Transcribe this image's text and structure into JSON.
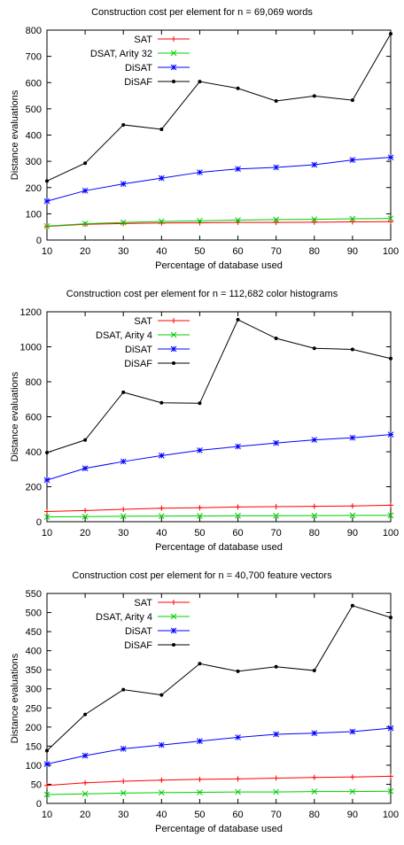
{
  "chart_data": [
    {
      "type": "line",
      "title": "Construction cost per element for n = 69,069 words",
      "xlabel": "Percentage of database used",
      "ylabel": "Distance evaluations",
      "x": [
        10,
        20,
        30,
        40,
        50,
        60,
        70,
        80,
        90,
        100
      ],
      "xlim": [
        10,
        100
      ],
      "ylim": [
        0,
        800
      ],
      "xticks": [
        10,
        20,
        30,
        40,
        50,
        60,
        70,
        80,
        90,
        100
      ],
      "yticks": [
        0,
        100,
        200,
        300,
        400,
        500,
        600,
        700,
        800
      ],
      "legend_position": "top-left",
      "series": [
        {
          "name": "SAT",
          "color": "#ff0000",
          "marker": "plus",
          "values": [
            52,
            60,
            63,
            65,
            66,
            67,
            67,
            68,
            69,
            70
          ]
        },
        {
          "name": "DSAT, Arity 32",
          "color": "#00cc00",
          "marker": "cross",
          "values": [
            53,
            62,
            67,
            71,
            73,
            76,
            78,
            79,
            81,
            82
          ]
        },
        {
          "name": "DiSAT",
          "color": "#0000ff",
          "marker": "star",
          "values": [
            148,
            188,
            214,
            236,
            258,
            271,
            277,
            287,
            305,
            315
          ]
        },
        {
          "name": "DiSAF",
          "color": "#000000",
          "marker": "dot",
          "values": [
            225,
            293,
            439,
            422,
            604,
            578,
            530,
            549,
            533,
            786
          ]
        }
      ]
    },
    {
      "type": "line",
      "title": "Construction cost per element for n = 112,682 color histograms",
      "xlabel": "Percentage of database used",
      "ylabel": "Distance evaluations",
      "x": [
        10,
        20,
        30,
        40,
        50,
        60,
        70,
        80,
        90,
        100
      ],
      "xlim": [
        10,
        100
      ],
      "ylim": [
        0,
        1200
      ],
      "xticks": [
        10,
        20,
        30,
        40,
        50,
        60,
        70,
        80,
        90,
        100
      ],
      "yticks": [
        0,
        200,
        400,
        600,
        800,
        1000,
        1200
      ],
      "legend_position": "top-left",
      "series": [
        {
          "name": "SAT",
          "color": "#ff0000",
          "marker": "plus",
          "values": [
            58,
            64,
            71,
            77,
            80,
            84,
            86,
            88,
            90,
            94
          ]
        },
        {
          "name": "DSAT, Arity 4",
          "color": "#00cc00",
          "marker": "cross",
          "values": [
            27,
            29,
            31,
            32,
            33,
            34,
            34,
            35,
            36,
            36
          ]
        },
        {
          "name": "DiSAT",
          "color": "#0000ff",
          "marker": "star",
          "values": [
            238,
            305,
            344,
            378,
            408,
            430,
            450,
            468,
            480,
            498
          ]
        },
        {
          "name": "DiSAF",
          "color": "#000000",
          "marker": "dot",
          "values": [
            395,
            467,
            740,
            680,
            677,
            1155,
            1048,
            991,
            985,
            933
          ]
        }
      ]
    },
    {
      "type": "line",
      "title": "Construction cost per element for n = 40,700 feature vectors",
      "xlabel": "Percentage of database used",
      "ylabel": "Distance evaluations",
      "x": [
        10,
        20,
        30,
        40,
        50,
        60,
        70,
        80,
        90,
        100
      ],
      "xlim": [
        10,
        100
      ],
      "ylim": [
        0,
        550
      ],
      "xticks": [
        10,
        20,
        30,
        40,
        50,
        60,
        70,
        80,
        90,
        100
      ],
      "yticks": [
        0,
        50,
        100,
        150,
        200,
        250,
        300,
        350,
        400,
        450,
        500,
        550
      ],
      "legend_position": "top-left",
      "series": [
        {
          "name": "SAT",
          "color": "#ff0000",
          "marker": "plus",
          "values": [
            47,
            54,
            58,
            61,
            63,
            64,
            66,
            68,
            69,
            71
          ]
        },
        {
          "name": "DSAT, Arity 4",
          "color": "#00cc00",
          "marker": "cross",
          "values": [
            23,
            25,
            27,
            28,
            29,
            30,
            30,
            31,
            31,
            32
          ]
        },
        {
          "name": "DiSAT",
          "color": "#0000ff",
          "marker": "star",
          "values": [
            103,
            125,
            143,
            153,
            163,
            173,
            181,
            184,
            188,
            197
          ]
        },
        {
          "name": "DiSAF",
          "color": "#000000",
          "marker": "dot",
          "values": [
            138,
            233,
            298,
            284,
            366,
            346,
            358,
            348,
            518,
            487
          ]
        }
      ]
    }
  ]
}
